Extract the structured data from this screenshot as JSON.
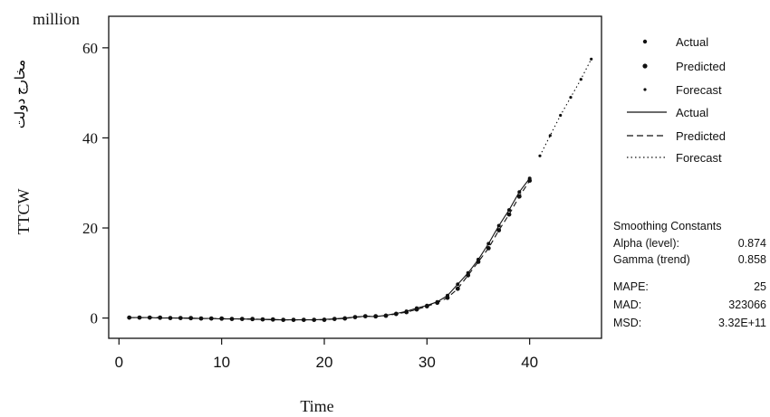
{
  "chart_data": {
    "type": "line",
    "ylabel": "TTCW",
    "ylabel_native": "مخارج دولت",
    "yunit": "million",
    "xlabel": "Time",
    "xlim": [
      -1,
      47
    ],
    "ylim": [
      -4.5,
      67
    ],
    "xticks": [
      0,
      10,
      20,
      30,
      40
    ],
    "yticks": [
      0,
      20,
      40,
      60
    ],
    "grid": false,
    "legend_position": "right",
    "series": [
      {
        "name": "Actual",
        "style": "solid-with-dots",
        "x": [
          1,
          2,
          3,
          4,
          5,
          6,
          7,
          8,
          9,
          10,
          11,
          12,
          13,
          14,
          15,
          16,
          17,
          18,
          19,
          20,
          21,
          22,
          23,
          24,
          25,
          26,
          27,
          28,
          29,
          30,
          31,
          32,
          33,
          34,
          35,
          36,
          37,
          38,
          39,
          40
        ],
        "y": [
          0.1,
          0.1,
          0.1,
          0.0,
          0.0,
          0.0,
          -0.1,
          -0.1,
          -0.1,
          -0.2,
          -0.2,
          -0.2,
          -0.3,
          -0.3,
          -0.4,
          -0.4,
          -0.4,
          -0.4,
          -0.4,
          -0.3,
          -0.2,
          0.0,
          0.2,
          0.4,
          0.3,
          0.6,
          1.0,
          1.5,
          2.2,
          2.8,
          3.6,
          5.0,
          7.5,
          10.0,
          13.0,
          16.5,
          20.5,
          24.0,
          28.0,
          31.0
        ]
      },
      {
        "name": "Predicted",
        "style": "dashed-with-dots",
        "x": [
          1,
          2,
          3,
          4,
          5,
          6,
          7,
          8,
          9,
          10,
          11,
          12,
          13,
          14,
          15,
          16,
          17,
          18,
          19,
          20,
          21,
          22,
          23,
          24,
          25,
          26,
          27,
          28,
          29,
          30,
          31,
          32,
          33,
          34,
          35,
          36,
          37,
          38,
          39,
          40
        ],
        "y": [
          0.1,
          0.1,
          0.1,
          0.1,
          0.0,
          0.0,
          0.0,
          -0.1,
          -0.1,
          -0.1,
          -0.2,
          -0.2,
          -0.2,
          -0.3,
          -0.3,
          -0.4,
          -0.4,
          -0.4,
          -0.4,
          -0.4,
          -0.2,
          -0.1,
          0.2,
          0.4,
          0.4,
          0.5,
          0.9,
          1.3,
          1.9,
          2.6,
          3.4,
          4.5,
          6.5,
          9.5,
          12.5,
          15.5,
          19.5,
          23.0,
          27.0,
          30.5
        ]
      },
      {
        "name": "Forecast",
        "style": "dotted-with-dots",
        "x": [
          41,
          42,
          43,
          44,
          45,
          46
        ],
        "y": [
          36.0,
          40.5,
          45.0,
          49.0,
          53.0,
          57.5
        ]
      }
    ]
  },
  "legend": {
    "markers": [
      "Actual",
      "Predicted",
      "Forecast"
    ],
    "lines": [
      "Actual",
      "Predicted",
      "Forecast"
    ]
  },
  "stats": {
    "heading": "Smoothing Constants",
    "rows": [
      {
        "label": "Alpha (level):",
        "value": "0.874"
      },
      {
        "label": "Gamma (trend)",
        "value": "0.858"
      },
      {
        "label": "MAPE:",
        "value": "25"
      },
      {
        "label": "MAD:",
        "value": "323066"
      },
      {
        "label": "MSD:",
        "value": "3.32E+11"
      }
    ]
  },
  "colors": {
    "ink": "#111111",
    "background": "#ffffff"
  }
}
